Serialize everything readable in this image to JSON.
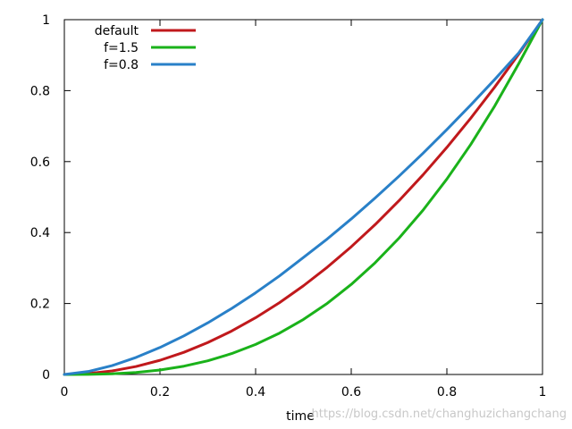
{
  "chart_data": {
    "type": "line",
    "title": "",
    "xlabel": "time",
    "ylabel": "",
    "xlim": [
      0,
      1
    ],
    "ylim": [
      0,
      1
    ],
    "grid": false,
    "legend_position": "top-left",
    "x_ticks": [
      0,
      0.2,
      0.4,
      0.6,
      0.8,
      1
    ],
    "x_tick_labels": [
      "0",
      "0.2",
      "0.4",
      "0.6",
      "0.8",
      "1"
    ],
    "y_ticks": [
      0,
      0.2,
      0.4,
      0.6,
      0.8,
      1
    ],
    "y_tick_labels": [
      "0",
      "0.2",
      "0.4",
      "0.6",
      "0.8",
      "1"
    ],
    "x": [
      0,
      0.05,
      0.1,
      0.15,
      0.2,
      0.25,
      0.3,
      0.35,
      0.4,
      0.45,
      0.5,
      0.55,
      0.6,
      0.65,
      0.7,
      0.75,
      0.8,
      0.85,
      0.9,
      0.95,
      1
    ],
    "series": [
      {
        "name": "default",
        "color": "#c0191c",
        "values": [
          0,
          0.0025,
          0.01,
          0.0225,
          0.04,
          0.0625,
          0.09,
          0.1225,
          0.16,
          0.2025,
          0.25,
          0.3025,
          0.36,
          0.4225,
          0.49,
          0.5625,
          0.64,
          0.7225,
          0.81,
          0.9025,
          1
        ]
      },
      {
        "name": "f=1.5",
        "color": "#1ab21a",
        "values": [
          0,
          0.0003,
          0.002,
          0.0058,
          0.0127,
          0.0234,
          0.0386,
          0.0589,
          0.0847,
          0.1166,
          0.1552,
          0.2007,
          0.2538,
          0.3149,
          0.3844,
          0.4629,
          0.5508,
          0.6485,
          0.7565,
          0.8753,
          1
        ]
      },
      {
        "name": "f=0.8",
        "color": "#2980c8",
        "values": [
          0,
          0.0084,
          0.0251,
          0.0481,
          0.0761,
          0.1088,
          0.1455,
          0.1861,
          0.2303,
          0.2779,
          0.3299,
          0.3822,
          0.4384,
          0.4974,
          0.559,
          0.6233,
          0.6903,
          0.7597,
          0.8314,
          0.9058,
          1
        ]
      }
    ]
  },
  "watermark_text": "https://blog.csdn.net/changhuzichangchang"
}
